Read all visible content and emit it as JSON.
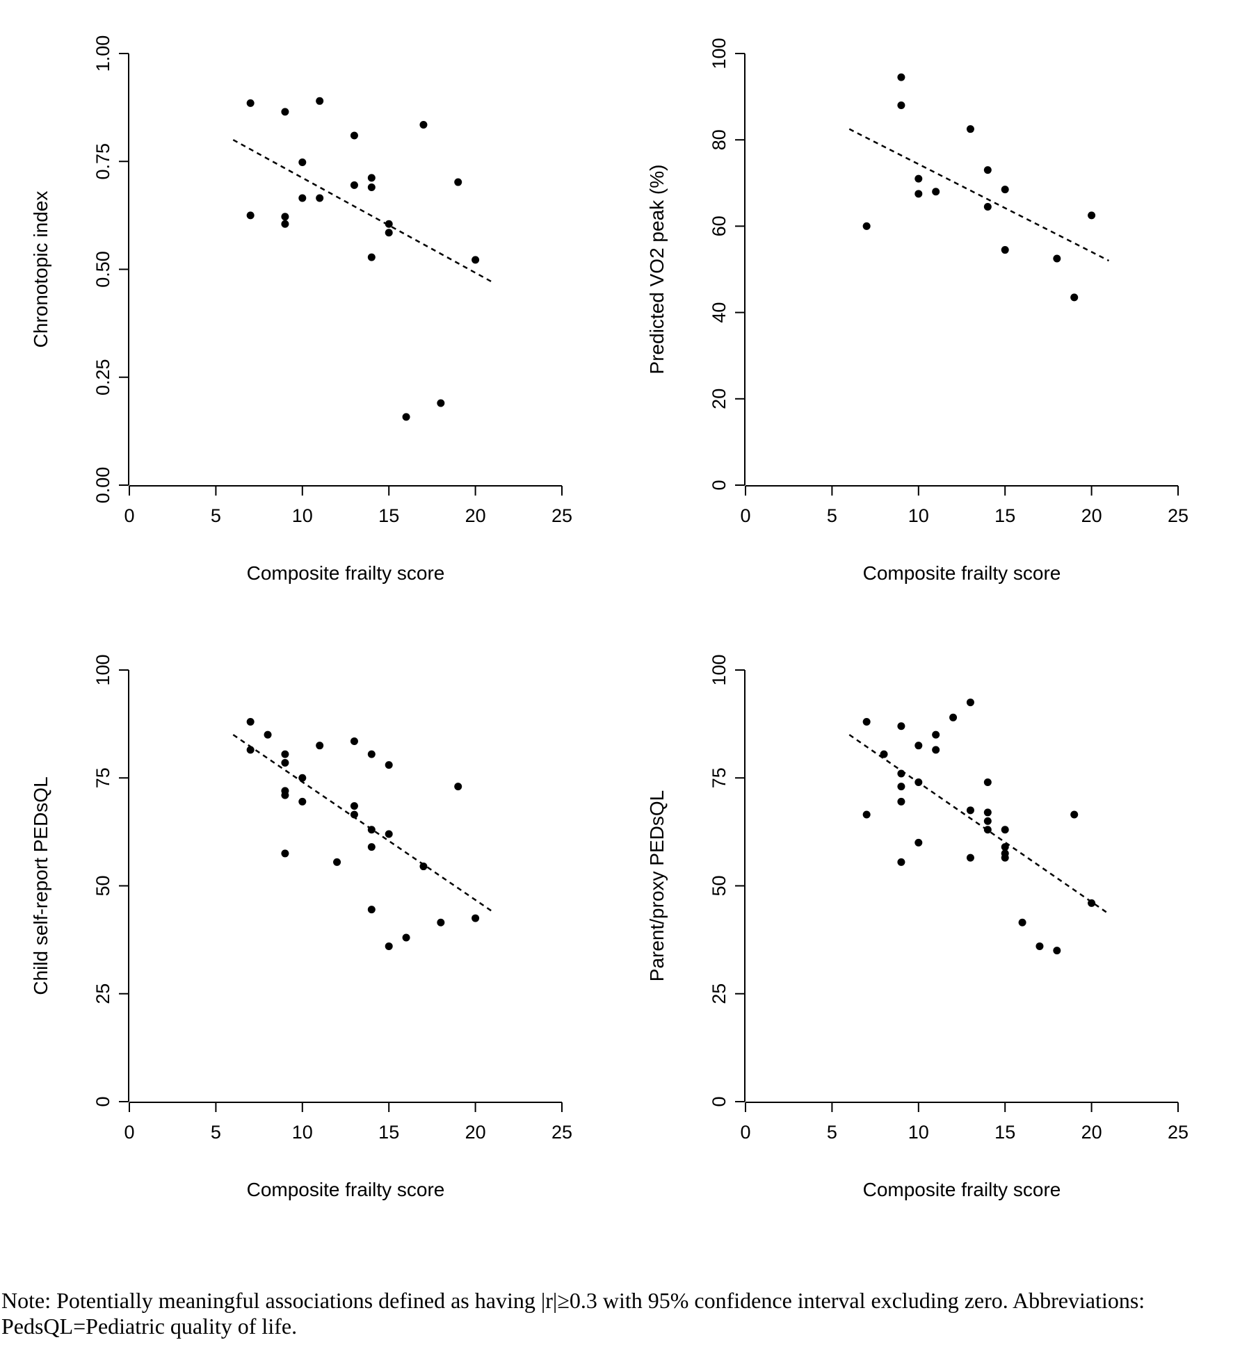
{
  "chart_data": [
    {
      "type": "scatter",
      "title": "",
      "xlabel": "Composite frailty score",
      "ylabel": "Chronotopic index",
      "xlim": [
        0,
        25
      ],
      "ylim": [
        0,
        1
      ],
      "xticks": [
        "0",
        "5",
        "10",
        "15",
        "20",
        "25"
      ],
      "yticks": [
        "0.00",
        "0.25",
        "0.50",
        "0.75",
        "1.00"
      ],
      "points": [
        [
          7,
          0.885
        ],
        [
          7,
          0.625
        ],
        [
          9,
          0.865
        ],
        [
          9,
          0.622
        ],
        [
          9,
          0.605
        ],
        [
          10,
          0.748
        ],
        [
          10,
          0.665
        ],
        [
          11,
          0.89
        ],
        [
          11,
          0.665
        ],
        [
          13,
          0.81
        ],
        [
          13,
          0.695
        ],
        [
          14,
          0.712
        ],
        [
          14,
          0.69
        ],
        [
          14,
          0.528
        ],
        [
          15,
          0.605
        ],
        [
          15,
          0.585
        ],
        [
          16,
          0.158
        ],
        [
          17,
          0.835
        ],
        [
          18,
          0.19
        ],
        [
          19,
          0.702
        ],
        [
          20,
          0.522
        ]
      ],
      "trend_line": [
        [
          6,
          0.8
        ],
        [
          21,
          0.47
        ]
      ]
    },
    {
      "type": "scatter",
      "title": "",
      "xlabel": "Composite frailty score",
      "ylabel": "Predicted VO2 peak (%)",
      "xlim": [
        0,
        25
      ],
      "ylim": [
        0,
        100
      ],
      "xticks": [
        "0",
        "5",
        "10",
        "15",
        "20",
        "25"
      ],
      "yticks": [
        "0",
        "20",
        "40",
        "60",
        "80",
        "100"
      ],
      "points": [
        [
          7,
          60
        ],
        [
          9,
          94.5
        ],
        [
          9,
          88
        ],
        [
          10,
          71
        ],
        [
          10,
          67.5
        ],
        [
          11,
          68
        ],
        [
          13,
          82.5
        ],
        [
          14,
          73
        ],
        [
          14,
          64.5
        ],
        [
          15,
          68.5
        ],
        [
          15,
          54.5
        ],
        [
          18,
          52.5
        ],
        [
          19,
          43.5
        ],
        [
          20,
          62.5
        ]
      ],
      "trend_line": [
        [
          6,
          82.5
        ],
        [
          21,
          52
        ]
      ]
    },
    {
      "type": "scatter",
      "title": "",
      "xlabel": "Composite frailty score",
      "ylabel": "Child self-report PEDsQL",
      "xlim": [
        0,
        25
      ],
      "ylim": [
        0,
        100
      ],
      "xticks": [
        "0",
        "5",
        "10",
        "15",
        "20",
        "25"
      ],
      "yticks": [
        "0",
        "25",
        "50",
        "75",
        "100"
      ],
      "points": [
        [
          7,
          88
        ],
        [
          7,
          81.5
        ],
        [
          8,
          85
        ],
        [
          9,
          80.5
        ],
        [
          9,
          78.5
        ],
        [
          9,
          72
        ],
        [
          9,
          71
        ],
        [
          9,
          57.5
        ],
        [
          10,
          75
        ],
        [
          10,
          69.5
        ],
        [
          11,
          82.5
        ],
        [
          12,
          55.5
        ],
        [
          13,
          83.5
        ],
        [
          13,
          68.5
        ],
        [
          13,
          66.5
        ],
        [
          14,
          80.5
        ],
        [
          14,
          63
        ],
        [
          14,
          59
        ],
        [
          14,
          44.5
        ],
        [
          15,
          78
        ],
        [
          15,
          62
        ],
        [
          15,
          36
        ],
        [
          16,
          38
        ],
        [
          17,
          54.5
        ],
        [
          18,
          41.5
        ],
        [
          19,
          73
        ],
        [
          20,
          42.5
        ]
      ],
      "trend_line": [
        [
          6,
          85
        ],
        [
          21,
          44
        ]
      ]
    },
    {
      "type": "scatter",
      "title": "",
      "xlabel": "Composite frailty score",
      "ylabel": "Parent/proxy PEDsQL",
      "xlim": [
        0,
        25
      ],
      "ylim": [
        0,
        100
      ],
      "xticks": [
        "0",
        "5",
        "10",
        "15",
        "20",
        "25"
      ],
      "yticks": [
        "0",
        "25",
        "50",
        "75",
        "100"
      ],
      "points": [
        [
          7,
          88
        ],
        [
          7,
          66.5
        ],
        [
          8,
          80.5
        ],
        [
          9,
          87
        ],
        [
          9,
          76
        ],
        [
          9,
          73
        ],
        [
          9,
          69.5
        ],
        [
          9,
          55.5
        ],
        [
          10,
          82.5
        ],
        [
          10,
          74
        ],
        [
          10,
          60
        ],
        [
          11,
          85
        ],
        [
          11,
          81.5
        ],
        [
          12,
          89
        ],
        [
          13,
          92.5
        ],
        [
          13,
          67.5
        ],
        [
          13,
          56.5
        ],
        [
          14,
          74
        ],
        [
          14,
          67
        ],
        [
          14,
          65
        ],
        [
          14,
          63
        ],
        [
          15,
          63
        ],
        [
          15,
          59
        ],
        [
          15,
          57.5
        ],
        [
          15,
          56.5
        ],
        [
          16,
          41.5
        ],
        [
          17,
          36
        ],
        [
          18,
          35
        ],
        [
          19,
          66.5
        ],
        [
          20,
          46
        ]
      ],
      "trend_line": [
        [
          6,
          85
        ],
        [
          21,
          43.5
        ]
      ]
    }
  ],
  "note": "Note: Potentially meaningful associations defined as having |r|≥0.3 with 95% confidence interval excluding zero. Abbreviations: PedsQL=Pediatric quality of life."
}
